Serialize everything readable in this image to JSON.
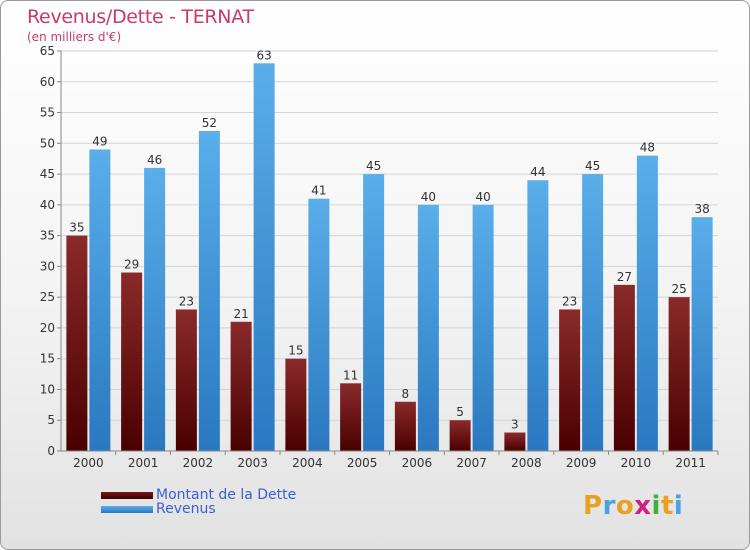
{
  "chart_data": {
    "type": "bar",
    "title": "Revenus/Dette - TERNAT",
    "subtitle": "(en milliers d'€)",
    "categories": [
      "2000",
      "2001",
      "2002",
      "2003",
      "2004",
      "2005",
      "2006",
      "2007",
      "2008",
      "2009",
      "2010",
      "2011"
    ],
    "series": [
      {
        "name": "Montant de la Dette",
        "color": "#7a1515",
        "values": [
          35,
          29,
          23,
          21,
          15,
          11,
          8,
          5,
          3,
          23,
          27,
          25
        ]
      },
      {
        "name": "Revenus",
        "color": "#4a9fe0",
        "values": [
          49,
          46,
          52,
          63,
          41,
          45,
          40,
          40,
          44,
          45,
          48,
          38
        ]
      }
    ],
    "ylim": [
      0,
      65
    ],
    "yticks": [
      0,
      5,
      10,
      15,
      20,
      25,
      30,
      35,
      40,
      45,
      50,
      55,
      60,
      65
    ],
    "grid": true,
    "legend_position": "bottom-left",
    "xlabel": "",
    "ylabel": ""
  },
  "logo": {
    "text": "Proxiti",
    "letters": [
      {
        "ch": "P",
        "color": "#e8a020"
      },
      {
        "ch": "r",
        "color": "#4aa0e0"
      },
      {
        "ch": "o",
        "color": "#e8a020"
      },
      {
        "ch": "x",
        "color": "#d02080"
      },
      {
        "ch": "i",
        "color": "#40b040"
      },
      {
        "ch": "t",
        "color": "#e8a020"
      },
      {
        "ch": "i",
        "color": "#4aa0e0"
      }
    ]
  }
}
